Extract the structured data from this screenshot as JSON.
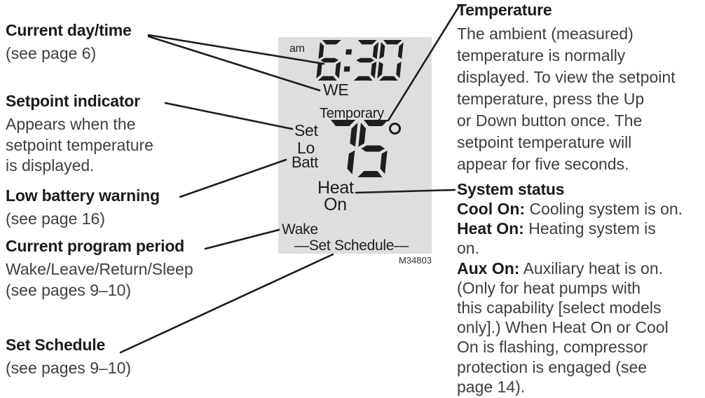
{
  "colors": {
    "display_background": "#dedede",
    "ink": "#1e1e1e",
    "heading_text": "#1b1b1b",
    "body_text": "#3e3e3e",
    "leader_line": "#1c1c1c"
  },
  "left_callouts": [
    {
      "heading": "Current day/time",
      "lines": [
        "(see page 6)"
      ]
    },
    {
      "heading": "Setpoint indicator",
      "lines": [
        "Appears when the",
        "setpoint temperature",
        "is displayed."
      ]
    },
    {
      "heading": "Low battery warning",
      "lines": [
        "(see page 16)"
      ]
    },
    {
      "heading": "Current program period",
      "lines": [
        "Wake/Leave/Return/Sleep",
        "(see pages 9–10)"
      ]
    },
    {
      "heading": "Set Schedule",
      "lines": [
        "(see pages 9–10)"
      ]
    }
  ],
  "display": {
    "am_label": "am",
    "time": "6:30",
    "day_label": "WE",
    "temporary_label": "Temporary",
    "set_label": "Set",
    "lo_label": "Lo",
    "batt_label": "Batt",
    "temperature": "75",
    "degree_symbol": "°",
    "heat_label": "Heat",
    "on_label": "On",
    "wake_label": "Wake",
    "set_schedule_label": "—Set Schedule—",
    "model_number": "M34803"
  },
  "right_callouts": {
    "temperature": {
      "heading": "Temperature",
      "lines": [
        "The ambient (measured)",
        "temperature is normally",
        "displayed. To view the setpoint",
        "temperature, press the Up",
        "or Down button once. The",
        "setpoint temperature will",
        "appear for five seconds."
      ]
    },
    "system_status": {
      "heading": "System status",
      "lines": [
        {
          "bold": "Cool On:",
          "text": " Cooling system is on."
        },
        {
          "bold": "Heat On:",
          "text": " Heating system is"
        },
        {
          "bold": "",
          "text": "on."
        },
        {
          "bold": "Aux On:",
          "text": " Auxiliary heat is on."
        },
        {
          "bold": "",
          "text": "(Only for heat pumps with"
        },
        {
          "bold": "",
          "text": "this capability [select models"
        },
        {
          "bold": "",
          "text": "only].) When Heat On or Cool"
        },
        {
          "bold": "",
          "text": "On is flashing, compressor"
        },
        {
          "bold": "",
          "text": "protection is engaged (see"
        },
        {
          "bold": "",
          "text": "page 14)."
        }
      ]
    }
  }
}
